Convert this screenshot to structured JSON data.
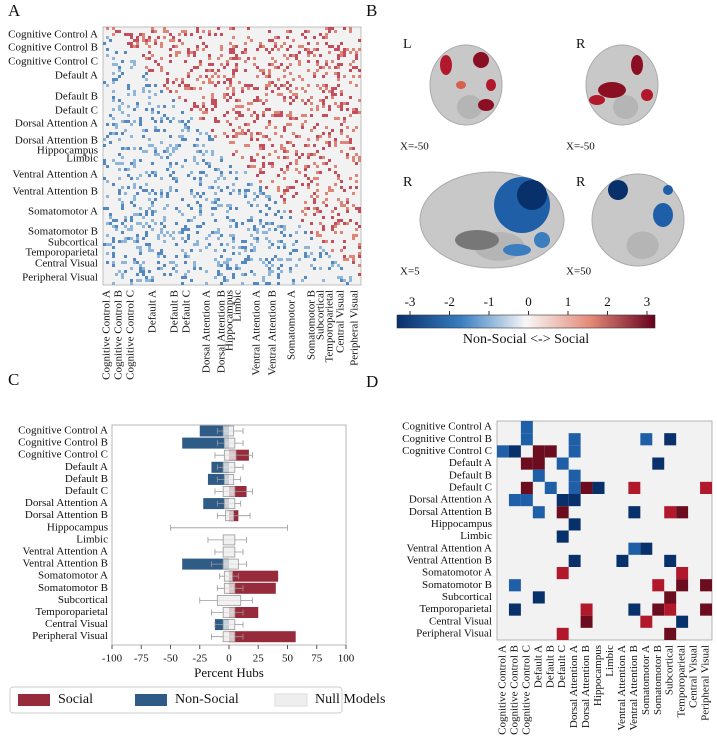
{
  "panel_labels": [
    "A",
    "B",
    "C",
    "D"
  ],
  "panel_a": {
    "labels": [
      "Cognitive Control A",
      "Cognitive Control B",
      "Cognitive Control C",
      "Default A",
      "Default B",
      "Default C",
      "Dorsal Attention A",
      "Dorsal Attention B",
      "Hippocampus",
      "Limbic",
      "Ventral Attention A",
      "Ventral Attention B",
      "Somatomotor A",
      "Somatomotor B",
      "Subcortical",
      "Temporoparietal",
      "Central Visual",
      "Peripheral Visual"
    ]
  },
  "panel_b": {
    "views": [
      {
        "hemisphere": "L",
        "coordinate": "X=-50"
      },
      {
        "hemisphere": "R",
        "coordinate": "X=-50"
      },
      {
        "hemisphere": "R",
        "coordinate": "X=5"
      },
      {
        "hemisphere": "R",
        "coordinate": "X=50"
      }
    ],
    "colorbar": {
      "ticks": [
        -3,
        -2,
        -1,
        0,
        1,
        2,
        3
      ],
      "label": "Non-Social <-> Social"
    }
  },
  "chart_data": {
    "type": "bar",
    "orientation": "horizontal",
    "categories": [
      "Cognitive Control A",
      "Cognitive Control B",
      "Cognitive Control C",
      "Default A",
      "Default B",
      "Default C",
      "Dorsal Attention A",
      "Dorsal Attention B",
      "Hippocampus",
      "Limbic",
      "Ventral Attention A",
      "Ventral Attention B",
      "Somatomotor A",
      "Somatomotor B",
      "Subcortical",
      "Temporoparietal",
      "Central Visual",
      "Peripheral Visual"
    ],
    "series": [
      {
        "name": "Social",
        "color": "#972a3b",
        "values": [
          null,
          null,
          17,
          null,
          null,
          15,
          null,
          8,
          null,
          null,
          null,
          null,
          42,
          40,
          null,
          25,
          null,
          57
        ]
      },
      {
        "name": "Non-Social",
        "color": "#2f5b87",
        "values": [
          -25,
          -40,
          null,
          -15,
          -18,
          null,
          -22,
          null,
          null,
          null,
          null,
          -40,
          null,
          null,
          null,
          null,
          -12,
          null
        ]
      },
      {
        "name": "Null Models",
        "color": "#eeeeee",
        "type": "box",
        "whisker_low": [
          -10,
          -10,
          -12,
          -10,
          -10,
          -12,
          -10,
          -10,
          -50,
          -18,
          -12,
          -15,
          -8,
          -10,
          -25,
          -15,
          -12,
          -15
        ],
        "q1": [
          -5,
          -4,
          -4,
          -5,
          -4,
          -5,
          -4,
          -3,
          0,
          -5,
          -5,
          -5,
          -4,
          -4,
          -10,
          -5,
          -5,
          -5
        ],
        "q3": [
          4,
          5,
          6,
          5,
          4,
          5,
          5,
          4,
          0,
          5,
          5,
          8,
          3,
          5,
          10,
          5,
          5,
          5
        ],
        "whisker_high": [
          12,
          12,
          20,
          12,
          10,
          20,
          10,
          18,
          50,
          15,
          12,
          15,
          8,
          12,
          20,
          12,
          12,
          12
        ]
      }
    ],
    "xlim": [
      -100,
      100
    ],
    "xticks": [
      -100,
      -75,
      -50,
      -25,
      0,
      25,
      50,
      75,
      100
    ],
    "xlabel": "Percent Hubs",
    "legend": "bottom"
  },
  "panel_d": {
    "labels": [
      "Cognitive Control A",
      "Cognitive Control B",
      "Cognitive Control C",
      "Default A",
      "Default B",
      "Default C",
      "Dorsal Attention A",
      "Dorsal Attention B",
      "Hippocampus",
      "Limbic",
      "Ventral Attention A",
      "Ventral Attention B",
      "Somatomotor A",
      "Somatomotor B",
      "Subcortical",
      "Temporoparietal",
      "Central Visual",
      "Peripheral Visual"
    ],
    "cells": [
      [
        0,
        2,
        -2
      ],
      [
        1,
        2,
        -2
      ],
      [
        1,
        6,
        -2
      ],
      [
        1,
        12,
        -2
      ],
      [
        1,
        14,
        -3
      ],
      [
        2,
        0,
        -2
      ],
      [
        2,
        1,
        -3
      ],
      [
        2,
        3,
        3
      ],
      [
        2,
        4,
        3
      ],
      [
        2,
        6,
        -2
      ],
      [
        3,
        2,
        3
      ],
      [
        3,
        3,
        3
      ],
      [
        3,
        5,
        -2
      ],
      [
        3,
        13,
        -3
      ],
      [
        4,
        3,
        -2
      ],
      [
        4,
        6,
        -2
      ],
      [
        5,
        2,
        3
      ],
      [
        5,
        4,
        -2
      ],
      [
        5,
        6,
        -2
      ],
      [
        5,
        7,
        3
      ],
      [
        5,
        8,
        -3
      ],
      [
        5,
        11,
        2
      ],
      [
        5,
        17,
        2
      ],
      [
        6,
        1,
        -2
      ],
      [
        6,
        2,
        -2
      ],
      [
        6,
        5,
        -3
      ],
      [
        6,
        6,
        -3
      ],
      [
        7,
        3,
        -2
      ],
      [
        7,
        5,
        3
      ],
      [
        7,
        11,
        -3
      ],
      [
        7,
        14,
        2
      ],
      [
        7,
        15,
        3
      ],
      [
        8,
        6,
        -3
      ],
      [
        9,
        5,
        -3
      ],
      [
        10,
        11,
        -2
      ],
      [
        10,
        12,
        -3
      ],
      [
        11,
        6,
        -3
      ],
      [
        11,
        10,
        -3
      ],
      [
        11,
        14,
        -3
      ],
      [
        12,
        5,
        2
      ],
      [
        12,
        15,
        2
      ],
      [
        13,
        1,
        -2
      ],
      [
        13,
        13,
        2
      ],
      [
        13,
        15,
        3
      ],
      [
        13,
        17,
        3
      ],
      [
        14,
        3,
        -3
      ],
      [
        14,
        14,
        3
      ],
      [
        15,
        1,
        -3
      ],
      [
        15,
        7,
        2
      ],
      [
        15,
        11,
        -3
      ],
      [
        15,
        13,
        3
      ],
      [
        15,
        14,
        2
      ],
      [
        15,
        17,
        3
      ],
      [
        16,
        7,
        3
      ],
      [
        16,
        12,
        2
      ],
      [
        16,
        15,
        -3
      ],
      [
        17,
        5,
        2
      ],
      [
        17,
        14,
        3
      ]
    ]
  }
}
